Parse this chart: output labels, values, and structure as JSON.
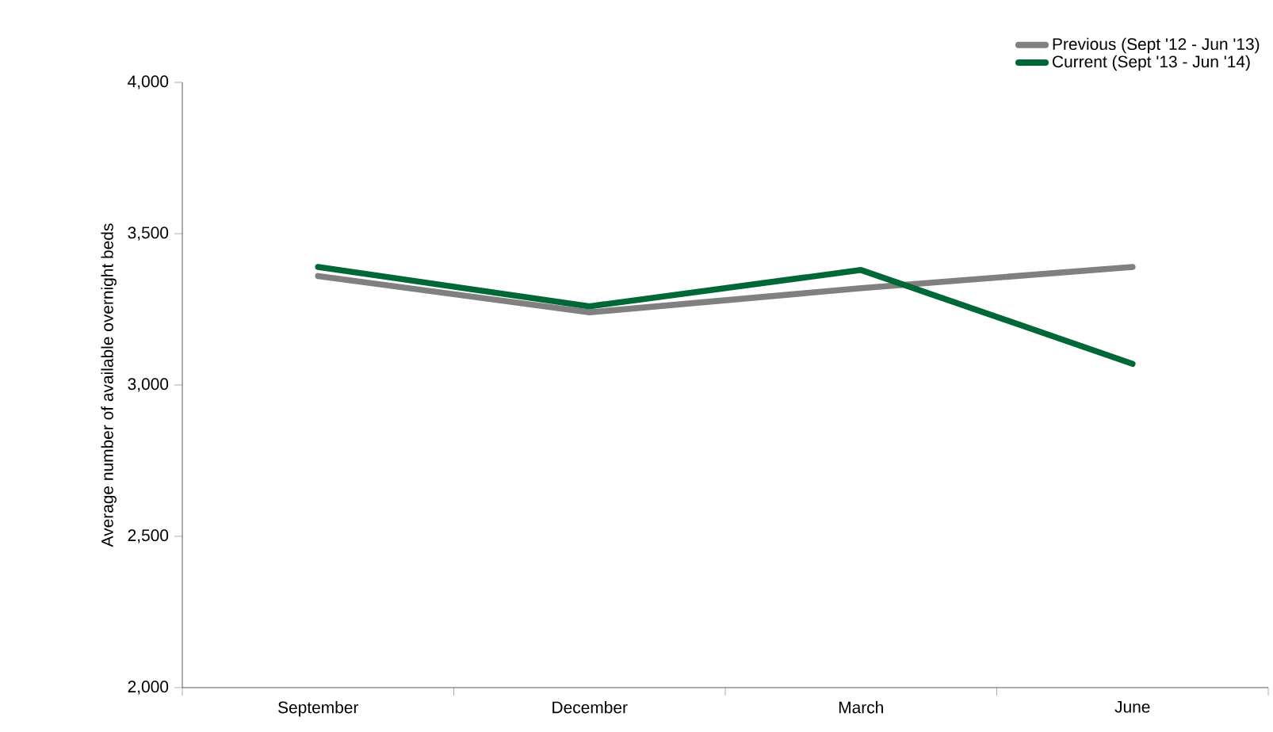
{
  "chart_data": {
    "type": "line",
    "ylabel": "Average number of available overnight beds",
    "categories": [
      "September",
      "December",
      "March",
      "June"
    ],
    "series": [
      {
        "name": "Previous (Sept '12 -  Jun '13)",
        "color": "#808080",
        "values": [
          3360,
          3240,
          3320,
          3390
        ]
      },
      {
        "name": "Current (Sept '13 - Jun '14)",
        "color": "#006837",
        "values": [
          3390,
          3260,
          3380,
          3070
        ]
      }
    ],
    "ylim": [
      2000,
      4000
    ],
    "yticks": [
      {
        "value": 2000,
        "label": "2,000"
      },
      {
        "value": 2500,
        "label": "2,500"
      },
      {
        "value": 3000,
        "label": "3,000"
      },
      {
        "value": 3500,
        "label": "3,500"
      },
      {
        "value": 4000,
        "label": "4,000"
      }
    ],
    "grid": false,
    "legend": "top right",
    "marker": "none",
    "line_style": "solid"
  }
}
